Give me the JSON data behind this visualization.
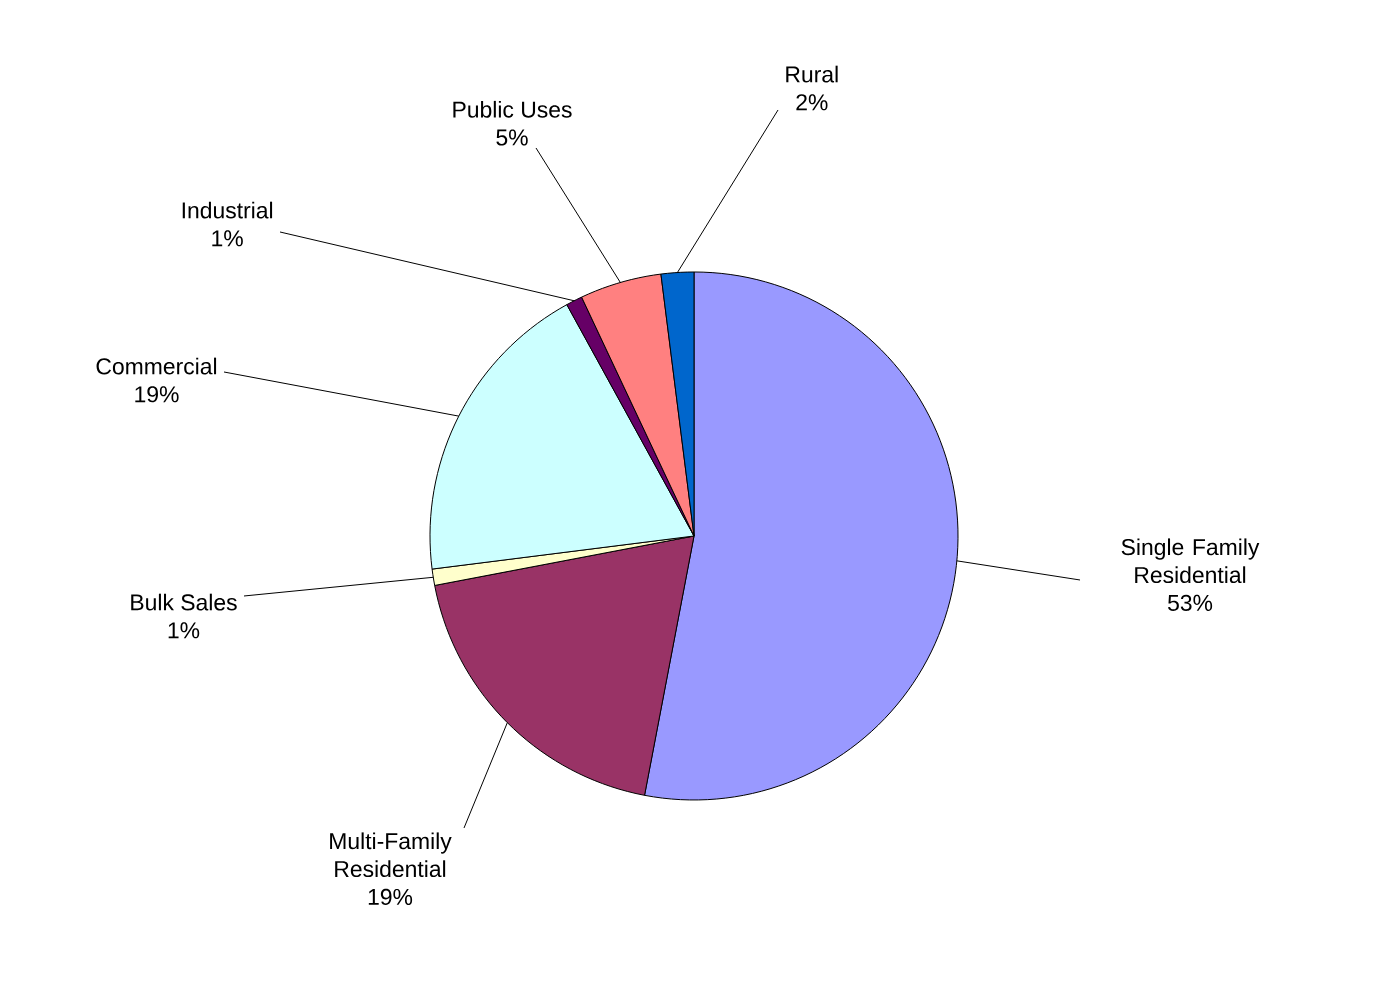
{
  "chart_data": {
    "type": "pie",
    "categories": [
      "Single Family Residential",
      "Multi-Family Residential",
      "Bulk Sales",
      "Commercial",
      "Industrial",
      "Public Uses",
      "Rural"
    ],
    "values": [
      53,
      19,
      1,
      19,
      1,
      5,
      2
    ],
    "colors": [
      "#9999ff",
      "#993366",
      "#ffffcc",
      "#ccffff",
      "#660066",
      "#ff8080",
      "#0066cc"
    ],
    "value_labels": [
      "53%",
      "19%",
      "1%",
      "19%",
      "1%",
      "5%",
      "2%"
    ]
  }
}
